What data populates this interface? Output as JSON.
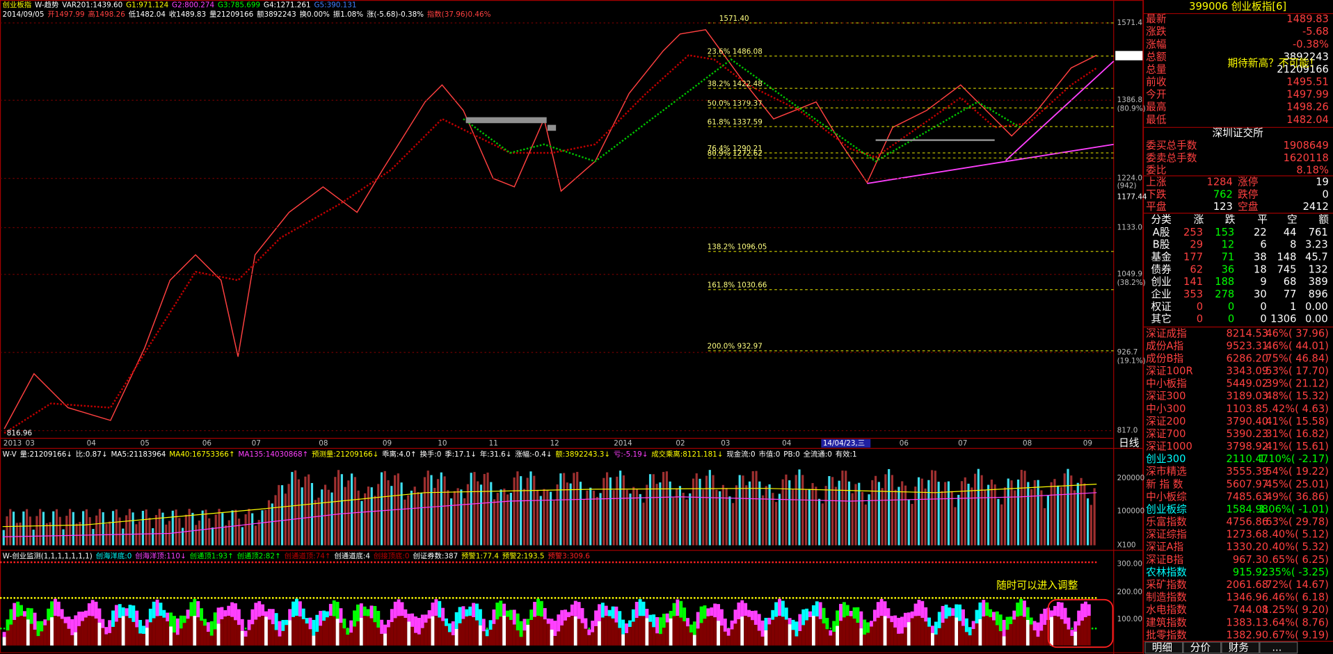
{
  "header": {
    "title_line": [
      "创业板指",
      "W-趋势",
      "VAR201:1439.60",
      "G1:971.124",
      "G2:800.274",
      "G3:785.699",
      "G4:1271.261",
      "G5:390.131"
    ],
    "quote_line": [
      "2014/09/05",
      "开1497.99",
      "高1498.26",
      "低1482.04",
      "收1489.83",
      "量21209166",
      "额3892243",
      "换0.00%",
      "振1.08%",
      "涨(-5.68)-0.38%",
      "指数(37.96)0.46%"
    ]
  },
  "price_chart": {
    "axis_labels": [
      "1571.4",
      "1489.8",
      "1386.8",
      "(80.9%)",
      "1224.0",
      "(942)",
      "1177.44",
      "1133.0",
      "1049.9",
      "(38.2%)",
      "926.7",
      "(19.1%)",
      "817.0"
    ],
    "fib_levels": [
      "1571.40",
      "23.6% 1486.08",
      "38.2% 1422.48",
      "50.0% 1379.37",
      "61.8% 1337.59",
      "76.4% 1290.21",
      "80.9% 1272.62",
      "138.2% 1096.05",
      "161.8% 1030.66",
      "200.0% 932.97"
    ],
    "low_label": "816.96",
    "dates": [
      "2013",
      "03",
      "04",
      "05",
      "06",
      "07",
      "08",
      "09",
      "10",
      "11",
      "12",
      "2014",
      "02",
      "03",
      "04",
      "14/04/23,三",
      "06",
      "07",
      "08",
      "09"
    ],
    "period": "日线"
  },
  "volume": {
    "header": [
      "W-V",
      "量:21209166↓",
      "比:0.87↓",
      "MA5:21183964",
      "MA40:16753366↑",
      "MA135:14030868↑",
      "预测量:21209166↓",
      "乖离:4.0↑",
      "换手:0",
      "季:17.1↓",
      "年:31.6↓",
      "涨幅:-0.4↓",
      "额:3892243.3↓",
      "亏:-5.19↓",
      "成交乘离:8121.181↓",
      "现金流:0",
      "市值:0",
      "PB:0",
      "全流通:0",
      "有效:1"
    ],
    "axis_labels": [
      "200000",
      "100000",
      "X100"
    ]
  },
  "indicator": {
    "header": [
      "W-创业监测(1,1,1,1,1,1,1)",
      "创海洋底:0",
      "创海洋顶:110↓",
      "创通顶1:93↑",
      "创通顶2:82↑",
      "创通道顶:74↑",
      "创通道底:4",
      "创接顶底:0",
      "创证券数:387",
      "预警1:77.4",
      "预警2:193.5",
      "预警3:309.6"
    ],
    "axis_labels": [
      "300.00",
      "200.00",
      "100.00"
    ],
    "annotation": "随时可以进入调整"
  },
  "panel": {
    "title": "399006 创业板指[6]",
    "quote": [
      [
        "最新",
        "1489.83"
      ],
      [
        "涨跌",
        "-5.68"
      ],
      [
        "涨幅",
        "-0.38%"
      ],
      [
        "总额",
        "3892243"
      ],
      [
        "总量",
        "21209166"
      ],
      [
        "前收",
        "1495.51"
      ],
      [
        "今开",
        "1497.99"
      ],
      [
        "最高",
        "1498.26"
      ],
      [
        "最低",
        "1482.04"
      ]
    ],
    "comment": "期待新高？不可能！",
    "exchange": "深圳证交所",
    "orders": [
      [
        "委买总手数",
        "1908649"
      ],
      [
        "委卖总手数",
        "1620118"
      ],
      [
        "委比",
        "8.18%"
      ]
    ],
    "breadth": [
      [
        "上涨",
        "1284",
        "涨停",
        "19"
      ],
      [
        "下跌",
        "762",
        "跌停",
        "0"
      ],
      [
        "平盘",
        "123",
        "空盘",
        "2412"
      ]
    ],
    "table_header": [
      "分类",
      "涨",
      "跌",
      "平",
      "空",
      "额"
    ],
    "table_rows": [
      [
        "A股",
        "253",
        "153",
        "22",
        "44",
        "761"
      ],
      [
        "B股",
        "29",
        "12",
        "6",
        "8",
        "3.23"
      ],
      [
        "基金",
        "177",
        "71",
        "38",
        "148",
        "45.7"
      ],
      [
        "债券",
        "62",
        "36",
        "18",
        "745",
        "132"
      ],
      [
        "创业",
        "141",
        "188",
        "9",
        "68",
        "389"
      ],
      [
        "企业",
        "353",
        "278",
        "30",
        "77",
        "896"
      ],
      [
        "权证",
        "0",
        "0",
        "0",
        "1",
        "0.00"
      ],
      [
        "其它",
        "0",
        "0",
        "0",
        "1306",
        "0.00"
      ]
    ],
    "indices": [
      [
        "深证成指",
        "8214.53",
        ".46%( 37.96)"
      ],
      [
        "成份A指",
        "9523.31",
        ".46%( 44.01)"
      ],
      [
        "成份B指",
        "6286.20",
        ".75%( 46.84)"
      ],
      [
        "深证100R",
        "3343.09",
        ".53%( 17.70)"
      ],
      [
        "中小板指",
        "5449.02",
        ".39%( 21.12)"
      ],
      [
        "深证300",
        "3189.03",
        ".48%( 15.32)"
      ],
      [
        "中小300",
        "1103.85",
        ".42%( 4.63)"
      ],
      [
        "深证200",
        "3790.40",
        ".41%( 15.58)"
      ],
      [
        "深证700",
        "5390.23",
        ".31%( 16.82)"
      ],
      [
        "深证1000",
        "3798.92",
        ".41%( 15.61)"
      ],
      [
        "创业300",
        "2110.47",
        "1.10%( -2.17)"
      ],
      [
        "深市精选",
        "3555.39",
        ".54%( 19.22)"
      ],
      [
        "新 指 数",
        "5607.97",
        ".45%( 25.01)"
      ],
      [
        "中小板综",
        "7485.63",
        ".49%( 36.86)"
      ],
      [
        "创业板综",
        "1584.98",
        "1.06%( -1.01)"
      ],
      [
        "乐富指数",
        "4756.86",
        ".63%( 29.78)"
      ],
      [
        "深证综指",
        "1273.68",
        ".40%( 5.12)"
      ],
      [
        "深证A指",
        "1330.20",
        ".40%( 5.32)"
      ],
      [
        "深证B指",
        "967.30",
        ".65%( 6.25)"
      ],
      [
        "农林指数",
        "915.92",
        ".35%( -3.25)"
      ],
      [
        "采矿指数",
        "2061.68",
        ".72%( 14.67)"
      ],
      [
        "制造指数",
        "1346.96",
        ".46%( 6.18)"
      ],
      [
        "水电指数",
        "744.08",
        "1.25%( 9.20)"
      ],
      [
        "建筑指数",
        "1383.13",
        ".64%( 8.76)"
      ],
      [
        "批零指数",
        "1382.90",
        ".67%( 9.19)"
      ]
    ],
    "tabs": [
      "明细",
      "分价",
      "财务",
      "..."
    ]
  }
}
